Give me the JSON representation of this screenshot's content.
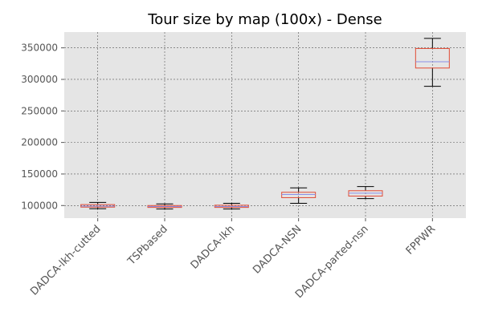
{
  "chart_data": {
    "type": "boxplot",
    "title": "Tour size by map (100x) - Dense",
    "xlabel": "",
    "ylabel": "",
    "ylim": [
      80000,
      375000
    ],
    "yticks": [
      100000,
      150000,
      200000,
      250000,
      300000,
      350000
    ],
    "ytick_labels": [
      "100000",
      "150000",
      "200000",
      "250000",
      "300000",
      "350000"
    ],
    "grid": true,
    "categories": [
      "DADCA-lkh-cutted",
      "TSPbased",
      "DADCA-lkh",
      "DADCA-NSN",
      "DADCA-parted-nsn",
      "FPPWR"
    ],
    "boxes": [
      {
        "whisker_low": 95000,
        "q1": 97500,
        "median": 99000,
        "q3": 101500,
        "whisker_high": 105000
      },
      {
        "whisker_low": 94500,
        "q1": 97000,
        "median": 98500,
        "q3": 100000,
        "whisker_high": 102500
      },
      {
        "whisker_low": 94500,
        "q1": 97000,
        "median": 98500,
        "q3": 100500,
        "whisker_high": 103500
      },
      {
        "whisker_low": 103500,
        "q1": 112500,
        "median": 117500,
        "q3": 121000,
        "whisker_high": 128000
      },
      {
        "whisker_low": 111000,
        "q1": 115000,
        "median": 119500,
        "q3": 123500,
        "whisker_high": 130000
      },
      {
        "whisker_low": 289000,
        "q1": 318000,
        "median": 328000,
        "q3": 349000,
        "whisker_high": 365000
      }
    ],
    "colors": {
      "background": "#e5e5e5",
      "grid": "#555555",
      "box": "#e24a33",
      "median": "#8b8fe6",
      "whisker": "#000000",
      "text": "#555555",
      "title": "#000000"
    }
  }
}
